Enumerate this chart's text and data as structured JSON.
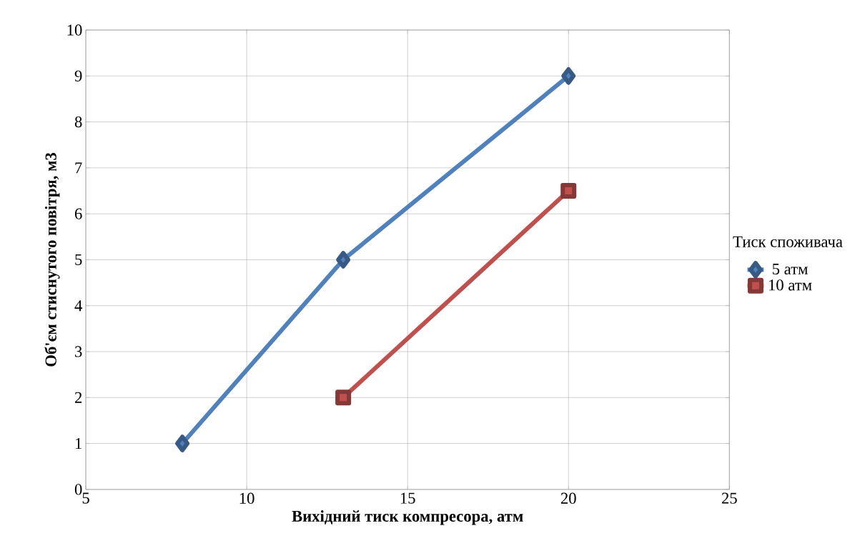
{
  "chart_data": {
    "type": "line",
    "xlabel": "Вихідний тиск компресора, атм",
    "ylabel": "Об'єм стиснутого повітря, м3",
    "legend_title": "Тиск споживача",
    "series": [
      {
        "name": "5 атм",
        "color": "#4f81bd",
        "marker": "diamond",
        "x": [
          8,
          13,
          20
        ],
        "values": [
          1,
          5,
          9
        ]
      },
      {
        "name": "10 атм",
        "color": "#c0504d",
        "marker": "square",
        "x": [
          13,
          20
        ],
        "values": [
          2,
          6.5
        ]
      }
    ],
    "xlim": [
      5,
      25
    ],
    "xticks": [
      5,
      10,
      15,
      20,
      25
    ],
    "ylim": [
      0,
      10
    ],
    "yticks": [
      0,
      1,
      2,
      3,
      4,
      5,
      6,
      7,
      8,
      9,
      10
    ],
    "grid": true,
    "legend": "right",
    "line_style": "solid"
  }
}
